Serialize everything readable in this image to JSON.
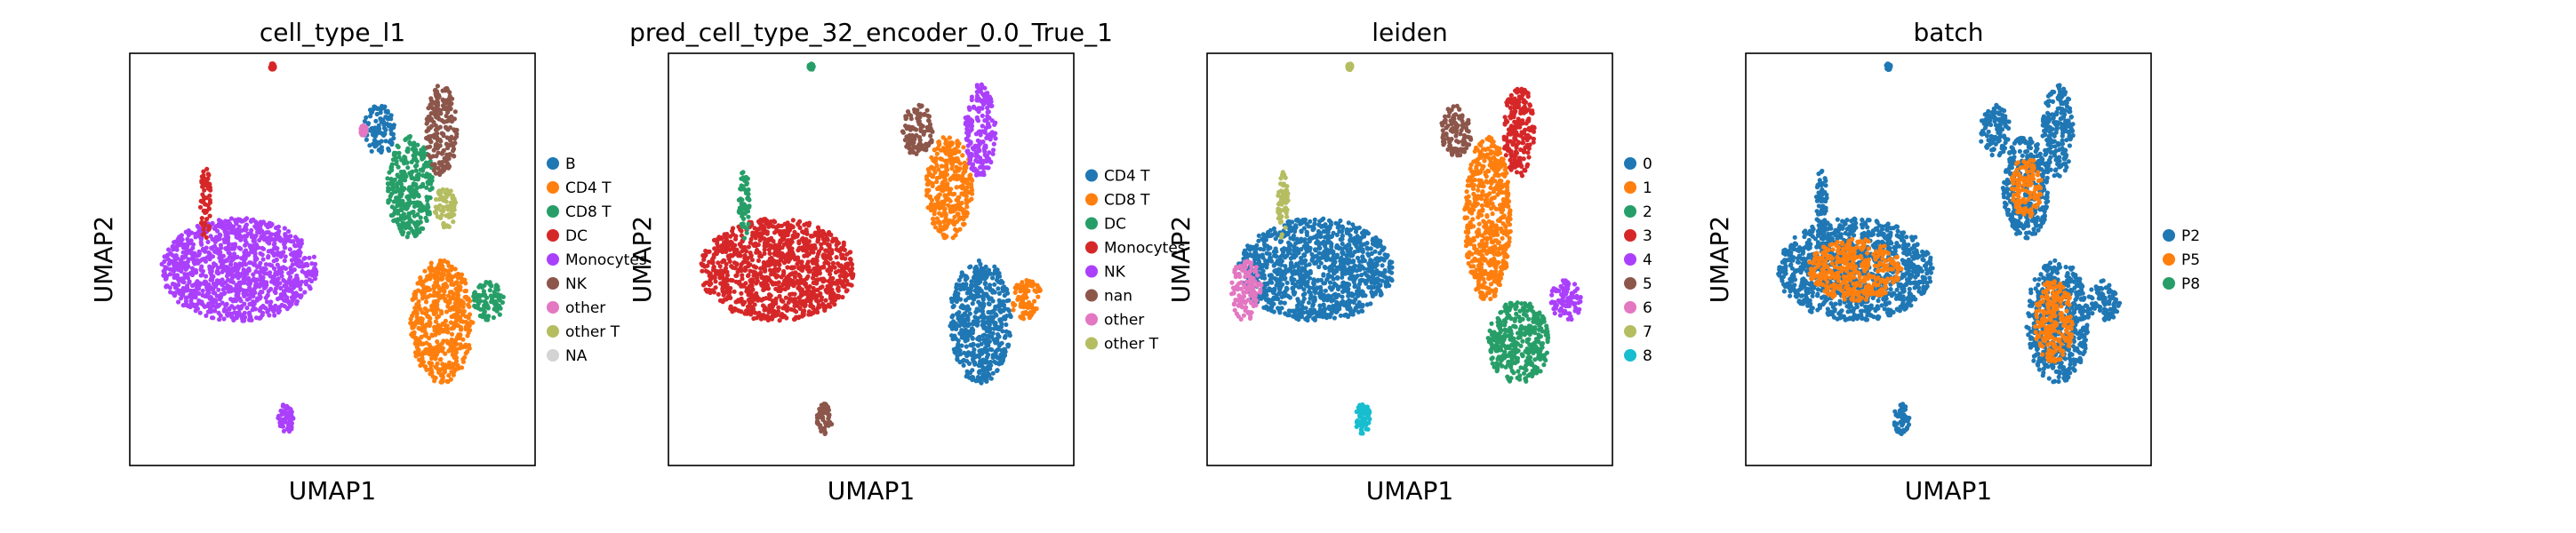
{
  "chart_data": [
    {
      "type": "scatter",
      "title": "cell_type_l1",
      "xlabel": "UMAP1",
      "ylabel": "UMAP2",
      "grid": false,
      "legend": "right",
      "legend_entries": [
        {
          "label": "B",
          "color": "#1f77b4"
        },
        {
          "label": "CD4 T",
          "color": "#ff7f0e"
        },
        {
          "label": "CD8 T",
          "color": "#279e68"
        },
        {
          "label": "DC",
          "color": "#d62728"
        },
        {
          "label": "Monocytes",
          "color": "#aa40fc"
        },
        {
          "label": "NK",
          "color": "#8c564b"
        },
        {
          "label": "other",
          "color": "#e377c2"
        },
        {
          "label": "other T",
          "color": "#b5bd61"
        },
        {
          "label": "NA",
          "color": "#d3d3d3"
        }
      ],
      "clusters": [
        {
          "c": "#aa40fc",
          "x": [
            2,
            12
          ],
          "y": [
            7,
            12
          ]
        },
        {
          "c": "#d62728",
          "x": [
            4.5,
            5.2
          ],
          "y": [
            11,
            14.5
          ]
        },
        {
          "c": "#d62728",
          "x": [
            9,
            9.3
          ],
          "y": [
            19.2,
            19.5
          ]
        },
        {
          "c": "#aa40fc",
          "x": [
            9.5,
            10.5
          ],
          "y": [
            1.5,
            3
          ]
        },
        {
          "c": "#1f77b4",
          "x": [
            15,
            17
          ],
          "y": [
            15,
            17.5
          ]
        },
        {
          "c": "#279e68",
          "x": [
            16.5,
            19.5
          ],
          "y": [
            11,
            16
          ]
        },
        {
          "c": "#8c564b",
          "x": [
            19,
            21
          ],
          "y": [
            14,
            18.5
          ]
        },
        {
          "c": "#b5bd61",
          "x": [
            19.5,
            21
          ],
          "y": [
            11.5,
            13.5
          ]
        },
        {
          "c": "#ff7f0e",
          "x": [
            18,
            22
          ],
          "y": [
            4,
            10
          ]
        },
        {
          "c": "#279e68",
          "x": [
            22,
            24
          ],
          "y": [
            7,
            9
          ]
        },
        {
          "c": "#e377c2",
          "x": [
            14.8,
            15.2
          ],
          "y": [
            16,
            16.5
          ]
        }
      ]
    },
    {
      "type": "scatter",
      "title": "pred_cell_type_32_encoder_0.0_True_1",
      "xlabel": "UMAP1",
      "ylabel": "UMAP2",
      "grid": false,
      "legend": "right",
      "legend_entries": [
        {
          "label": "CD4 T",
          "color": "#1f77b4"
        },
        {
          "label": "CD8 T",
          "color": "#ff7f0e"
        },
        {
          "label": "DC",
          "color": "#279e68"
        },
        {
          "label": "Monocytes",
          "color": "#d62728"
        },
        {
          "label": "NK",
          "color": "#aa40fc"
        },
        {
          "label": "nan",
          "color": "#8c564b"
        },
        {
          "label": "other",
          "color": "#e377c2"
        },
        {
          "label": "other T",
          "color": "#b5bd61"
        }
      ],
      "clusters": [
        {
          "c": "#d62728",
          "x": [
            2,
            12
          ],
          "y": [
            7,
            12
          ]
        },
        {
          "c": "#279e68",
          "x": [
            4.5,
            5.2
          ],
          "y": [
            11,
            14.5
          ]
        },
        {
          "c": "#279e68",
          "x": [
            9,
            9.3
          ],
          "y": [
            19.2,
            19.5
          ]
        },
        {
          "c": "#8c564b",
          "x": [
            9.5,
            10.5
          ],
          "y": [
            1.5,
            3
          ]
        },
        {
          "c": "#8c564b",
          "x": [
            15,
            17
          ],
          "y": [
            15,
            17.5
          ]
        },
        {
          "c": "#ff7f0e",
          "x": [
            16.5,
            19.5
          ],
          "y": [
            11,
            16
          ]
        },
        {
          "c": "#aa40fc",
          "x": [
            19,
            21
          ],
          "y": [
            14,
            18.5
          ]
        },
        {
          "c": "#1f77b4",
          "x": [
            18,
            22
          ],
          "y": [
            4,
            10
          ]
        },
        {
          "c": "#ff7f0e",
          "x": [
            22,
            24
          ],
          "y": [
            7,
            9
          ]
        }
      ]
    },
    {
      "type": "scatter",
      "title": "leiden",
      "xlabel": "UMAP1",
      "ylabel": "UMAP2",
      "grid": false,
      "legend": "right",
      "legend_entries": [
        {
          "label": "0",
          "color": "#1f77b4"
        },
        {
          "label": "1",
          "color": "#ff7f0e"
        },
        {
          "label": "2",
          "color": "#279e68"
        },
        {
          "label": "3",
          "color": "#d62728"
        },
        {
          "label": "4",
          "color": "#aa40fc"
        },
        {
          "label": "5",
          "color": "#8c564b"
        },
        {
          "label": "6",
          "color": "#e377c2"
        },
        {
          "label": "7",
          "color": "#b5bd61"
        },
        {
          "label": "8",
          "color": "#17becf"
        }
      ],
      "clusters": [
        {
          "c": "#1f77b4",
          "x": [
            2,
            12
          ],
          "y": [
            7,
            12
          ]
        },
        {
          "c": "#e377c2",
          "x": [
            1.5,
            3.5
          ],
          "y": [
            7,
            10
          ]
        },
        {
          "c": "#b5bd61",
          "x": [
            4.5,
            5.2
          ],
          "y": [
            11,
            14.5
          ]
        },
        {
          "c": "#b5bd61",
          "x": [
            9,
            9.3
          ],
          "y": [
            19.2,
            19.5
          ]
        },
        {
          "c": "#17becf",
          "x": [
            9.5,
            10.5
          ],
          "y": [
            1.5,
            3
          ]
        },
        {
          "c": "#8c564b",
          "x": [
            15,
            17
          ],
          "y": [
            15,
            17.5
          ]
        },
        {
          "c": "#ff7f0e",
          "x": [
            16.5,
            19.5
          ],
          "y": [
            8,
            16
          ]
        },
        {
          "c": "#d62728",
          "x": [
            19,
            21
          ],
          "y": [
            14,
            18.5
          ]
        },
        {
          "c": "#279e68",
          "x": [
            18,
            22
          ],
          "y": [
            4,
            8
          ]
        },
        {
          "c": "#aa40fc",
          "x": [
            22,
            24
          ],
          "y": [
            7,
            9
          ]
        }
      ]
    },
    {
      "type": "scatter",
      "title": "batch",
      "xlabel": "UMAP1",
      "ylabel": "UMAP2",
      "grid": false,
      "legend": "right",
      "legend_entries": [
        {
          "label": "P2",
          "color": "#1f77b4"
        },
        {
          "label": "P5",
          "color": "#ff7f0e"
        },
        {
          "label": "P8",
          "color": "#279e68"
        }
      ],
      "clusters": [
        {
          "c": "#1f77b4",
          "x": [
            2,
            12
          ],
          "y": [
            7,
            12
          ]
        },
        {
          "c": "#ff7f0e",
          "x": [
            4,
            10
          ],
          "y": [
            8,
            11
          ]
        },
        {
          "c": "#1f77b4",
          "x": [
            4.5,
            5.2
          ],
          "y": [
            11,
            14.5
          ]
        },
        {
          "c": "#1f77b4",
          "x": [
            9,
            9.3
          ],
          "y": [
            19.2,
            19.5
          ]
        },
        {
          "c": "#1f77b4",
          "x": [
            9.5,
            10.5
          ],
          "y": [
            1.5,
            3
          ]
        },
        {
          "c": "#1f77b4",
          "x": [
            15,
            17
          ],
          "y": [
            15,
            17.5
          ]
        },
        {
          "c": "#1f77b4",
          "x": [
            16.5,
            19.5
          ],
          "y": [
            11,
            16
          ]
        },
        {
          "c": "#ff7f0e",
          "x": [
            17,
            19
          ],
          "y": [
            12,
            15
          ]
        },
        {
          "c": "#1f77b4",
          "x": [
            19,
            21
          ],
          "y": [
            14,
            18.5
          ]
        },
        {
          "c": "#1f77b4",
          "x": [
            18,
            22
          ],
          "y": [
            4,
            10
          ]
        },
        {
          "c": "#ff7f0e",
          "x": [
            18.5,
            21
          ],
          "y": [
            5,
            9
          ]
        },
        {
          "c": "#1f77b4",
          "x": [
            22,
            24
          ],
          "y": [
            7,
            9
          ]
        }
      ]
    }
  ]
}
